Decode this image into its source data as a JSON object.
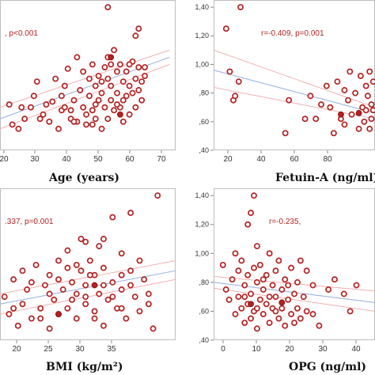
{
  "chart_data": [
    {
      "type": "scatter",
      "xlabel": "Age (years)",
      "annotation": ", p<0.001",
      "x_ticks": [
        "20",
        "30",
        "40",
        "50",
        "60",
        "70"
      ],
      "y_ticks": [],
      "xlim": [
        15,
        72
      ],
      "ylim": [
        0.4,
        1.45
      ],
      "points": [
        [
          18,
          0.72
        ],
        [
          19,
          0.58
        ],
        [
          21,
          0.55
        ],
        [
          23,
          0.62
        ],
        [
          25,
          0.7
        ],
        [
          27,
          0.88
        ],
        [
          29,
          0.65
        ],
        [
          31,
          0.6
        ],
        [
          32,
          0.74
        ],
        [
          33,
          0.9
        ],
        [
          34,
          0.55
        ],
        [
          35,
          0.68
        ],
        [
          36,
          0.85
        ],
        [
          37,
          0.97
        ],
        [
          38,
          0.62
        ],
        [
          39,
          0.75
        ],
        [
          40,
          1.05
        ],
        [
          40,
          0.6
        ],
        [
          41,
          0.82
        ],
        [
          42,
          0.7
        ],
        [
          42,
          0.95
        ],
        [
          43,
          0.58
        ],
        [
          44,
          0.9
        ],
        [
          44,
          0.78
        ],
        [
          45,
          0.68
        ],
        [
          45,
          1.0
        ],
        [
          46,
          0.62
        ],
        [
          46,
          0.85
        ],
        [
          47,
          0.75
        ],
        [
          47,
          0.92
        ],
        [
          48,
          0.55
        ],
        [
          48,
          0.8
        ],
        [
          49,
          0.98
        ],
        [
          49,
          0.7
        ],
        [
          50,
          0.9
        ],
        [
          50,
          0.62
        ],
        [
          50,
          1.05
        ],
        [
          51,
          0.75
        ],
        [
          51,
          0.85
        ],
        [
          52,
          1.1
        ],
        [
          52,
          0.68
        ],
        [
          53,
          0.95
        ],
        [
          53,
          0.8
        ],
        [
          54,
          0.7
        ],
        [
          54,
          1.0
        ],
        [
          55,
          0.88
        ],
        [
          55,
          0.6
        ],
        [
          56,
          0.78
        ],
        [
          56,
          0.95
        ],
        [
          57,
          0.85
        ],
        [
          57,
          0.65
        ],
        [
          58,
          1.02
        ],
        [
          58,
          0.8
        ],
        [
          59,
          0.9
        ],
        [
          59,
          0.7
        ],
        [
          60,
          0.98
        ],
        [
          60,
          0.82
        ],
        [
          61,
          0.75
        ],
        [
          62,
          0.92
        ],
        [
          26,
          0.78
        ],
        [
          28,
          0.62
        ],
        [
          30,
          0.72
        ],
        [
          35,
          0.78
        ],
        [
          38,
          0.68
        ],
        [
          43,
          0.65
        ],
        [
          46,
          0.72
        ],
        [
          48,
          0.88
        ],
        [
          51,
          1.0
        ],
        [
          53,
          0.72
        ],
        [
          55,
          0.75
        ],
        [
          57,
          1.0
        ],
        [
          59,
          1.2
        ],
        [
          60,
          1.25
        ],
        [
          61,
          0.88
        ],
        [
          62,
          0.98
        ],
        [
          50,
          1.4
        ],
        [
          45,
          0.58
        ],
        [
          39,
          0.6
        ],
        [
          36,
          0.7
        ],
        [
          22,
          0.7
        ]
      ],
      "fit": [
        [
          15,
          0.62
        ],
        [
          70,
          1.05
        ]
      ],
      "ci_upper": [
        [
          15,
          0.7
        ],
        [
          70,
          1.1
        ]
      ],
      "ci_lower": [
        [
          15,
          0.55
        ],
        [
          70,
          1.0
        ]
      ],
      "highlight": [
        [
          51,
          1.05
        ],
        [
          54,
          0.65
        ]
      ]
    },
    {
      "type": "scatter",
      "xlabel": "Fetuin-A (ng/ml)",
      "annotation": "r=-0.409, p=0.001",
      "x_ticks": [
        "20",
        "40",
        "60",
        "80"
      ],
      "y_ticks": [
        "1,40",
        "1,20",
        "1,00",
        ",80",
        ",60",
        ",40"
      ],
      "xlim": [
        15,
        105
      ],
      "ylim": [
        0.4,
        1.45
      ],
      "points": [
        [
          22,
          1.25
        ],
        [
          24,
          0.95
        ],
        [
          26,
          0.75
        ],
        [
          27,
          0.78
        ],
        [
          29,
          0.88
        ],
        [
          30,
          1.4
        ],
        [
          55,
          0.52
        ],
        [
          57,
          0.75
        ],
        [
          66,
          0.62
        ],
        [
          69,
          0.78
        ],
        [
          72,
          0.62
        ],
        [
          75,
          0.72
        ],
        [
          78,
          0.85
        ],
        [
          80,
          0.7
        ],
        [
          82,
          0.52
        ],
        [
          84,
          0.88
        ],
        [
          86,
          0.62
        ],
        [
          88,
          0.58
        ],
        [
          90,
          0.75
        ],
        [
          92,
          0.65
        ],
        [
          94,
          0.8
        ],
        [
          96,
          0.55
        ],
        [
          97,
          0.92
        ],
        [
          98,
          0.7
        ],
        [
          99,
          0.6
        ],
        [
          100,
          0.85
        ],
        [
          100,
          0.68
        ],
        [
          101,
          0.78
        ],
        [
          102,
          0.55
        ],
        [
          102,
          0.95
        ],
        [
          103,
          0.72
        ],
        [
          103,
          0.62
        ],
        [
          104,
          0.88
        ],
        [
          104,
          0.68
        ],
        [
          88,
          0.82
        ],
        [
          91,
          0.95
        ]
      ],
      "fit": [
        [
          15,
          0.96
        ],
        [
          105,
          0.66
        ]
      ],
      "ci_upper": [
        [
          15,
          1.1
        ],
        [
          105,
          0.7
        ]
      ],
      "ci_lower": [
        [
          15,
          0.84
        ],
        [
          105,
          0.62
        ]
      ],
      "highlight": [
        [
          86,
          0.65
        ],
        [
          96,
          0.66
        ]
      ]
    },
    {
      "type": "scatter",
      "xlabel": "BMI (kg/m²)",
      "annotation": ".337, p=0.001",
      "x_ticks": [
        "20",
        "25",
        "30",
        "35"
      ],
      "y_ticks": [],
      "xlim": [
        16.5,
        36
      ],
      "ylim": [
        0.4,
        1.45
      ],
      "points": [
        [
          17,
          0.7
        ],
        [
          17.5,
          0.58
        ],
        [
          18,
          0.82
        ],
        [
          18.5,
          0.5
        ],
        [
          19,
          0.65
        ],
        [
          19.5,
          0.75
        ],
        [
          20,
          0.55
        ],
        [
          20.5,
          0.92
        ],
        [
          21,
          0.62
        ],
        [
          21.5,
          0.78
        ],
        [
          22,
          0.48
        ],
        [
          22,
          0.85
        ],
        [
          22.5,
          0.68
        ],
        [
          23,
          0.95
        ],
        [
          23,
          0.58
        ],
        [
          23.5,
          0.75
        ],
        [
          24,
          0.62
        ],
        [
          24,
          1.02
        ],
        [
          24.5,
          0.8
        ],
        [
          25,
          0.55
        ],
        [
          25,
          0.72
        ],
        [
          25.5,
          0.88
        ],
        [
          25.5,
          1.1
        ],
        [
          26,
          0.65
        ],
        [
          26,
          0.78
        ],
        [
          26.5,
          0.95
        ],
        [
          27,
          0.6
        ],
        [
          27,
          0.85
        ],
        [
          27.5,
          0.72
        ],
        [
          27.5,
          1.05
        ],
        [
          28,
          0.5
        ],
        [
          28,
          0.9
        ],
        [
          28.5,
          0.68
        ],
        [
          29,
          0.8
        ],
        [
          29,
          1.25
        ],
        [
          29.5,
          0.62
        ],
        [
          30,
          0.75
        ],
        [
          30,
          1.0
        ],
        [
          30.5,
          0.55
        ],
        [
          31,
          0.88
        ],
        [
          31,
          1.28
        ],
        [
          31.5,
          0.7
        ],
        [
          32,
          0.95
        ],
        [
          32,
          0.6
        ],
        [
          32.5,
          0.82
        ],
        [
          33,
          0.72
        ],
        [
          33.5,
          0.48
        ],
        [
          34,
          1.4
        ],
        [
          24,
          0.9
        ],
        [
          26,
          1.08
        ],
        [
          28,
          0.78
        ],
        [
          30,
          0.85
        ],
        [
          22,
          0.72
        ],
        [
          20,
          0.8
        ],
        [
          18,
          0.62
        ],
        [
          25,
          0.92
        ],
        [
          27,
          0.55
        ],
        [
          29,
          0.7
        ],
        [
          31,
          0.78
        ],
        [
          33,
          0.65
        ],
        [
          21,
          0.55
        ],
        [
          23,
          0.82
        ],
        [
          26,
          0.7
        ],
        [
          28,
          1.1
        ],
        [
          30,
          0.62
        ],
        [
          19,
          0.88
        ],
        [
          24.5,
          0.68
        ],
        [
          26.5,
          0.85
        ]
      ],
      "fit": [
        [
          16.5,
          0.65
        ],
        [
          36,
          0.88
        ]
      ],
      "ci_upper": [
        [
          16.5,
          0.72
        ],
        [
          36,
          0.95
        ]
      ],
      "ci_lower": [
        [
          16.5,
          0.58
        ],
        [
          36,
          0.82
        ]
      ],
      "highlight": [
        [
          23,
          0.58
        ],
        [
          27,
          0.78
        ]
      ]
    },
    {
      "type": "scatter",
      "xlabel": "OPG (ng/ml)",
      "annotation": "r=-0.235,",
      "x_ticks": [
        "0",
        "10",
        "20",
        "30",
        "40"
      ],
      "y_ticks": [
        "1,40",
        "1,20",
        "1,00",
        ",80",
        ",60",
        ",40"
      ],
      "xlim": [
        -2,
        50
      ],
      "ylim": [
        0.4,
        1.45
      ],
      "points": [
        [
          1,
          0.92
        ],
        [
          2,
          0.75
        ],
        [
          3,
          0.68
        ],
        [
          4,
          0.82
        ],
        [
          5,
          1.0
        ],
        [
          5,
          0.58
        ],
        [
          6,
          0.88
        ],
        [
          6,
          0.7
        ],
        [
          7,
          0.62
        ],
        [
          7,
          0.95
        ],
        [
          8,
          0.78
        ],
        [
          8,
          0.52
        ],
        [
          9,
          1.2
        ],
        [
          9,
          0.85
        ],
        [
          9,
          0.65
        ],
        [
          10,
          1.28
        ],
        [
          10,
          0.72
        ],
        [
          10,
          0.55
        ],
        [
          11,
          1.4
        ],
        [
          11,
          0.9
        ],
        [
          11,
          0.6
        ],
        [
          12,
          0.8
        ],
        [
          12,
          0.48
        ],
        [
          12,
          1.05
        ],
        [
          13,
          0.68
        ],
        [
          13,
          0.92
        ],
        [
          14,
          0.75
        ],
        [
          14,
          0.58
        ],
        [
          15,
          0.85
        ],
        [
          15,
          0.65
        ],
        [
          16,
          1.0
        ],
        [
          16,
          0.52
        ],
        [
          17,
          0.78
        ],
        [
          17,
          0.62
        ],
        [
          18,
          0.88
        ],
        [
          18,
          0.7
        ],
        [
          19,
          0.55
        ],
        [
          19,
          0.95
        ],
        [
          20,
          0.75
        ],
        [
          20,
          0.62
        ],
        [
          21,
          0.82
        ],
        [
          21,
          0.5
        ],
        [
          22,
          0.68
        ],
        [
          23,
          0.9
        ],
        [
          23,
          0.58
        ],
        [
          24,
          0.72
        ],
        [
          25,
          0.8
        ],
        [
          25,
          0.62
        ],
        [
          26,
          0.95
        ],
        [
          26,
          0.55
        ],
        [
          27,
          0.7
        ],
        [
          28,
          0.88
        ],
        [
          28,
          0.6
        ],
        [
          30,
          0.78
        ],
        [
          32,
          0.5
        ],
        [
          35,
          0.75
        ],
        [
          37,
          0.82
        ],
        [
          40,
          0.72
        ],
        [
          42,
          0.6
        ],
        [
          44,
          0.78
        ],
        [
          14,
          0.82
        ],
        [
          22,
          0.78
        ],
        [
          8,
          0.7
        ],
        [
          16,
          0.7
        ],
        [
          24,
          0.52
        ],
        [
          30,
          0.58
        ],
        [
          18,
          0.6
        ],
        [
          12,
          0.62
        ]
      ],
      "fit": [
        [
          -2,
          0.8
        ],
        [
          50,
          0.66
        ]
      ],
      "ci_upper": [
        [
          -2,
          0.84
        ],
        [
          50,
          0.74
        ]
      ],
      "ci_lower": [
        [
          -2,
          0.76
        ],
        [
          50,
          0.6
        ]
      ],
      "highlight": [
        [
          10,
          0.65
        ],
        [
          20,
          0.66
        ]
      ]
    }
  ]
}
